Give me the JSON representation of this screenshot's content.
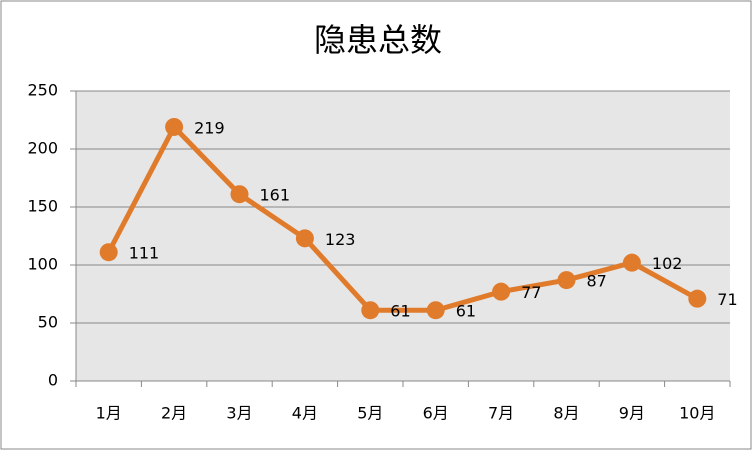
{
  "chart_data": {
    "type": "line",
    "title": "隐患总数",
    "categories": [
      "1月",
      "2月",
      "3月",
      "4月",
      "5月",
      "6月",
      "7月",
      "8月",
      "9月",
      "10月"
    ],
    "values": [
      111,
      219,
      161,
      123,
      61,
      61,
      77,
      87,
      102,
      71
    ],
    "color": "#e07b2c",
    "ylim": [
      0,
      250
    ],
    "yticks": [
      0,
      50,
      100,
      150,
      200,
      250
    ],
    "grid": true
  }
}
